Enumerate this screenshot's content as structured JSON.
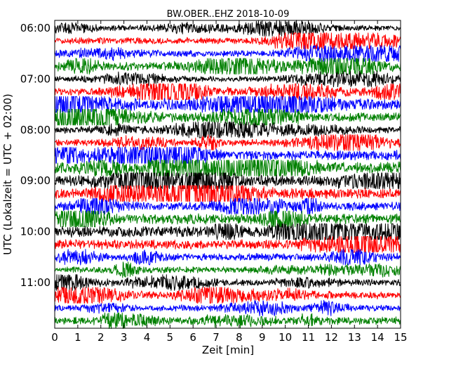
{
  "chart_data": {
    "type": "line",
    "title": "BW.OBER..EHZ 2018-10-09",
    "xlabel": "Zeit  [min]",
    "ylabel": "UTC (Lokalzeit = UTC + 02:00)",
    "xlim": [
      0,
      15
    ],
    "x_ticks": [
      0,
      1,
      2,
      3,
      4,
      5,
      6,
      7,
      8,
      9,
      10,
      11,
      12,
      13,
      14,
      15
    ],
    "x_tick_labels": [
      "0",
      "1",
      "2",
      "3",
      "4",
      "5",
      "6",
      "7",
      "8",
      "9",
      "10",
      "11",
      "12",
      "13",
      "14",
      "15"
    ],
    "y_tick_labels": [
      "06:00",
      "07:00",
      "08:00",
      "09:00",
      "10:00",
      "11:00"
    ],
    "y_tick_rows": [
      0,
      4,
      8,
      12,
      16,
      20
    ],
    "rows_per_hour": 4,
    "row_start_times": [
      "06:00",
      "06:15",
      "06:30",
      "06:45",
      "07:00",
      "07:15",
      "07:30",
      "07:45",
      "08:00",
      "08:15",
      "08:30",
      "08:45",
      "09:00",
      "09:15",
      "09:30",
      "09:45",
      "10:00",
      "10:15",
      "10:30",
      "10:45",
      "11:00",
      "11:15",
      "11:30",
      "11:45"
    ],
    "trace_colors": [
      "#000000",
      "#ff0000",
      "#0000ff",
      "#008000"
    ],
    "trace_amplitude": [
      0.18,
      0.22,
      0.22,
      0.3,
      0.18,
      0.25,
      0.4,
      0.3,
      0.22,
      0.22,
      0.35,
      0.4,
      0.38,
      0.35,
      0.28,
      0.35,
      0.38,
      0.32,
      0.25,
      0.22,
      0.22,
      0.25,
      0.22,
      0.25
    ],
    "grid": false,
    "legend": "none"
  }
}
